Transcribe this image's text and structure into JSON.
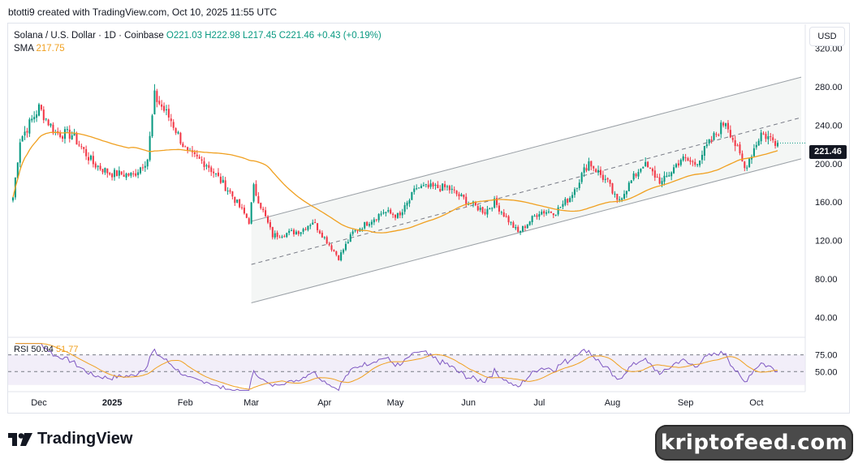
{
  "header": {
    "attribution": "btotti9 created with TradingView.com, Oct 10, 2025 11:55 UTC"
  },
  "legend": {
    "symbol": "Solana / U.S. Dollar · 1D · Coinbase",
    "open": "O221.03",
    "high": "H222.98",
    "low": "L217.45",
    "close": "C221.46",
    "change": "+0.43 (+0.19%)",
    "sma_label": "SMA",
    "sma_value": "217.75"
  },
  "rsi_legend": {
    "label": "RSI 50.04",
    "value": "51.77"
  },
  "currency": "USD",
  "last_price": "221.46",
  "branding": {
    "logo_text": "TradingView",
    "watermark": "kriptofeed.com"
  },
  "colors": {
    "up": "#089981",
    "down": "#f23645",
    "sma": "#f0a020",
    "rsi": "#7e57c2",
    "channel_fill": "#f4f6f5",
    "channel_line": "#9aa0a6"
  },
  "chart_data": {
    "type": "candlestick",
    "title": "Solana / U.S. Dollar · 1D · Coinbase",
    "x_tick_labels": [
      "Dec",
      "2025",
      "Feb",
      "Mar",
      "Apr",
      "May",
      "Jun",
      "Jul",
      "Aug",
      "Sep",
      "Oct"
    ],
    "y_tick_labels": [
      "320.00",
      "280.00",
      "240.00",
      "200.00",
      "160.00",
      "120.00",
      "80.00",
      "40.00"
    ],
    "y_ticks": [
      320,
      280,
      240,
      200,
      160,
      120,
      80,
      40
    ],
    "ylim": [
      20,
      345
    ],
    "date_range": [
      "2024-11-20",
      "2025-10-10"
    ],
    "price_keypoints": [
      {
        "date": "2024-11-20",
        "close": 165
      },
      {
        "date": "2024-11-23",
        "close": 225
      },
      {
        "date": "2024-12-01",
        "close": 258
      },
      {
        "date": "2024-12-08",
        "close": 232
      },
      {
        "date": "2024-12-15",
        "close": 230
      },
      {
        "date": "2024-12-24",
        "close": 200
      },
      {
        "date": "2024-12-31",
        "close": 190
      },
      {
        "date": "2025-01-10",
        "close": 188
      },
      {
        "date": "2025-01-16",
        "close": 205
      },
      {
        "date": "2025-01-19",
        "close": 270
      },
      {
        "date": "2025-01-26",
        "close": 245
      },
      {
        "date": "2025-02-02",
        "close": 210
      },
      {
        "date": "2025-02-10",
        "close": 200
      },
      {
        "date": "2025-02-20",
        "close": 170
      },
      {
        "date": "2025-02-28",
        "close": 140
      },
      {
        "date": "2025-03-02",
        "close": 175
      },
      {
        "date": "2025-03-10",
        "close": 125
      },
      {
        "date": "2025-03-22",
        "close": 130
      },
      {
        "date": "2025-03-27",
        "close": 140
      },
      {
        "date": "2025-04-07",
        "close": 102
      },
      {
        "date": "2025-04-13",
        "close": 128
      },
      {
        "date": "2025-04-20",
        "close": 140
      },
      {
        "date": "2025-04-26",
        "close": 150
      },
      {
        "date": "2025-05-03",
        "close": 145
      },
      {
        "date": "2025-05-10",
        "close": 175
      },
      {
        "date": "2025-05-23",
        "close": 175
      },
      {
        "date": "2025-06-02",
        "close": 158
      },
      {
        "date": "2025-06-08",
        "close": 150
      },
      {
        "date": "2025-06-12",
        "close": 160
      },
      {
        "date": "2025-06-22",
        "close": 128
      },
      {
        "date": "2025-07-01",
        "close": 150
      },
      {
        "date": "2025-07-08",
        "close": 150
      },
      {
        "date": "2025-07-14",
        "close": 165
      },
      {
        "date": "2025-07-22",
        "close": 202
      },
      {
        "date": "2025-07-30",
        "close": 180
      },
      {
        "date": "2025-08-03",
        "close": 160
      },
      {
        "date": "2025-08-14",
        "close": 200
      },
      {
        "date": "2025-08-22",
        "close": 180
      },
      {
        "date": "2025-08-30",
        "close": 205
      },
      {
        "date": "2025-09-05",
        "close": 200
      },
      {
        "date": "2025-09-18",
        "close": 245
      },
      {
        "date": "2025-09-26",
        "close": 195
      },
      {
        "date": "2025-10-03",
        "close": 232
      },
      {
        "date": "2025-10-10",
        "close": 221.46
      }
    ],
    "last_close": 221.46,
    "sma_last": 217.75,
    "channel": {
      "start_date": "2025-03-01",
      "end_date": "2025-10-20",
      "upper": [
        140,
        290
      ],
      "middle": [
        95,
        248
      ],
      "lower": [
        55,
        205
      ]
    },
    "rsi": {
      "levels": [
        75,
        50
      ],
      "level_labels": [
        "75.00",
        "50.00"
      ],
      "ylim": [
        20,
        100
      ],
      "last": 50.04,
      "ma_last": 51.77
    }
  }
}
